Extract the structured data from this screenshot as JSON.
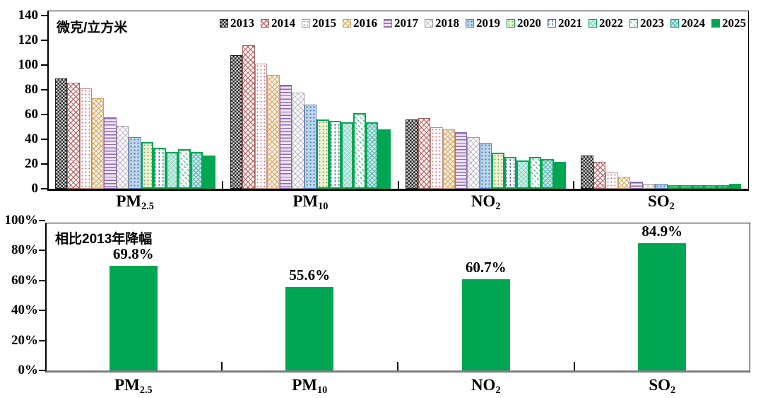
{
  "top_chart": {
    "unit_label": "微克/立方米",
    "ytick_labels": [
      "0",
      "20",
      "40",
      "60",
      "80",
      "100",
      "120",
      "140"
    ]
  },
  "bottom_chart": {
    "title": "相比2013年降幅",
    "ytick_labels": [
      "0%",
      "20%",
      "40%",
      "60%",
      "80%",
      "100%"
    ],
    "value_labels": [
      "69.8%",
      "55.6%",
      "60.7%",
      "84.9%"
    ]
  },
  "years": [
    "2013",
    "2014",
    "2015",
    "2016",
    "2017",
    "2018",
    "2019",
    "2020",
    "2021",
    "2022",
    "2023",
    "2024",
    "2025"
  ],
  "categories_display": [
    {
      "base": "PM",
      "sub": "2.5"
    },
    {
      "base": "PM",
      "sub": "10"
    },
    {
      "base": "NO",
      "sub": "2"
    },
    {
      "base": "SO",
      "sub": "2"
    }
  ],
  "colors": {
    "green": "#00a651",
    "axis": "#000000",
    "bottom_axis_line": "#7f7f7f"
  },
  "chart_data": [
    {
      "type": "bar",
      "title": "微克/立方米",
      "categories": [
        "PM2.5",
        "PM10",
        "NO2",
        "SO2"
      ],
      "series": [
        {
          "name": "2013",
          "values": [
            89,
            108,
            56,
            27
          ]
        },
        {
          "name": "2014",
          "values": [
            86,
            116,
            57,
            22
          ]
        },
        {
          "name": "2015",
          "values": [
            81,
            101,
            50,
            13
          ]
        },
        {
          "name": "2016",
          "values": [
            73,
            92,
            48,
            10
          ]
        },
        {
          "name": "2017",
          "values": [
            58,
            84,
            46,
            6
          ]
        },
        {
          "name": "2018",
          "values": [
            51,
            78,
            42,
            4
          ]
        },
        {
          "name": "2019",
          "values": [
            42,
            68,
            37,
            4
          ]
        },
        {
          "name": "2020",
          "values": [
            38,
            56,
            29,
            3
          ]
        },
        {
          "name": "2021",
          "values": [
            33,
            55,
            26,
            3
          ]
        },
        {
          "name": "2022",
          "values": [
            30,
            54,
            23,
            3
          ]
        },
        {
          "name": "2023",
          "values": [
            32,
            61,
            26,
            3
          ]
        },
        {
          "name": "2024",
          "values": [
            30,
            54,
            24,
            3
          ]
        },
        {
          "name": "2025",
          "values": [
            27,
            48,
            22,
            4
          ]
        }
      ],
      "ylabel": "微克/立方米",
      "ylim": [
        0,
        140
      ],
      "yticks": [
        0,
        20,
        40,
        60,
        80,
        100,
        120,
        140
      ],
      "legend_position": "top-right-inside",
      "grid": false
    },
    {
      "type": "bar",
      "title": "相比2013年降幅",
      "categories": [
        "PM2.5",
        "PM10",
        "NO2",
        "SO2"
      ],
      "values": [
        69.8,
        55.6,
        60.7,
        84.9
      ],
      "data_labels": [
        "69.8%",
        "55.6%",
        "60.7%",
        "84.9%"
      ],
      "ylim": [
        0,
        100
      ],
      "yticks": [
        0,
        20,
        40,
        60,
        80,
        100
      ],
      "grid": false
    }
  ]
}
